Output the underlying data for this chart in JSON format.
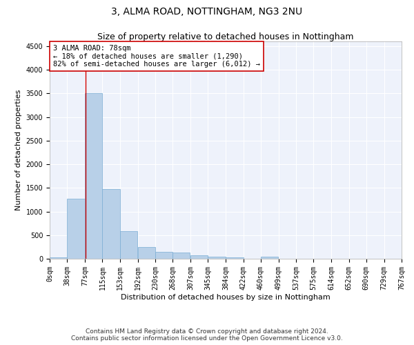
{
  "title": "3, ALMA ROAD, NOTTINGHAM, NG3 2NU",
  "subtitle": "Size of property relative to detached houses in Nottingham",
  "xlabel": "Distribution of detached houses by size in Nottingham",
  "ylabel": "Number of detached properties",
  "bar_color": "#b8d0e8",
  "bar_edge_color": "#7aadd4",
  "background_color": "#eef2fb",
  "grid_color": "#ffffff",
  "annotation_line_color": "#cc0000",
  "annotation_box_color": "#cc0000",
  "annotation_text": "3 ALMA ROAD: 78sqm\n← 18% of detached houses are smaller (1,290)\n82% of semi-detached houses are larger (6,012) →",
  "property_size": 78,
  "bin_edges": [
    0,
    38,
    77,
    115,
    153,
    192,
    230,
    268,
    307,
    345,
    384,
    422,
    460,
    499,
    537,
    575,
    614,
    652,
    690,
    729,
    767
  ],
  "bin_labels": [
    "0sqm",
    "38sqm",
    "77sqm",
    "115sqm",
    "153sqm",
    "192sqm",
    "230sqm",
    "268sqm",
    "307sqm",
    "345sqm",
    "384sqm",
    "422sqm",
    "460sqm",
    "499sqm",
    "537sqm",
    "575sqm",
    "614sqm",
    "652sqm",
    "690sqm",
    "729sqm",
    "767sqm"
  ],
  "bar_heights": [
    30,
    1270,
    3500,
    1480,
    580,
    255,
    140,
    130,
    75,
    50,
    35,
    0,
    50,
    0,
    0,
    0,
    0,
    0,
    0,
    0
  ],
  "ylim": [
    0,
    4600
  ],
  "yticks": [
    0,
    500,
    1000,
    1500,
    2000,
    2500,
    3000,
    3500,
    4000,
    4500
  ],
  "footer_text": "Contains HM Land Registry data © Crown copyright and database right 2024.\nContains public sector information licensed under the Open Government Licence v3.0.",
  "title_fontsize": 10,
  "subtitle_fontsize": 9,
  "axis_label_fontsize": 8,
  "tick_fontsize": 7,
  "footer_fontsize": 6.5,
  "annot_fontsize": 7.5
}
